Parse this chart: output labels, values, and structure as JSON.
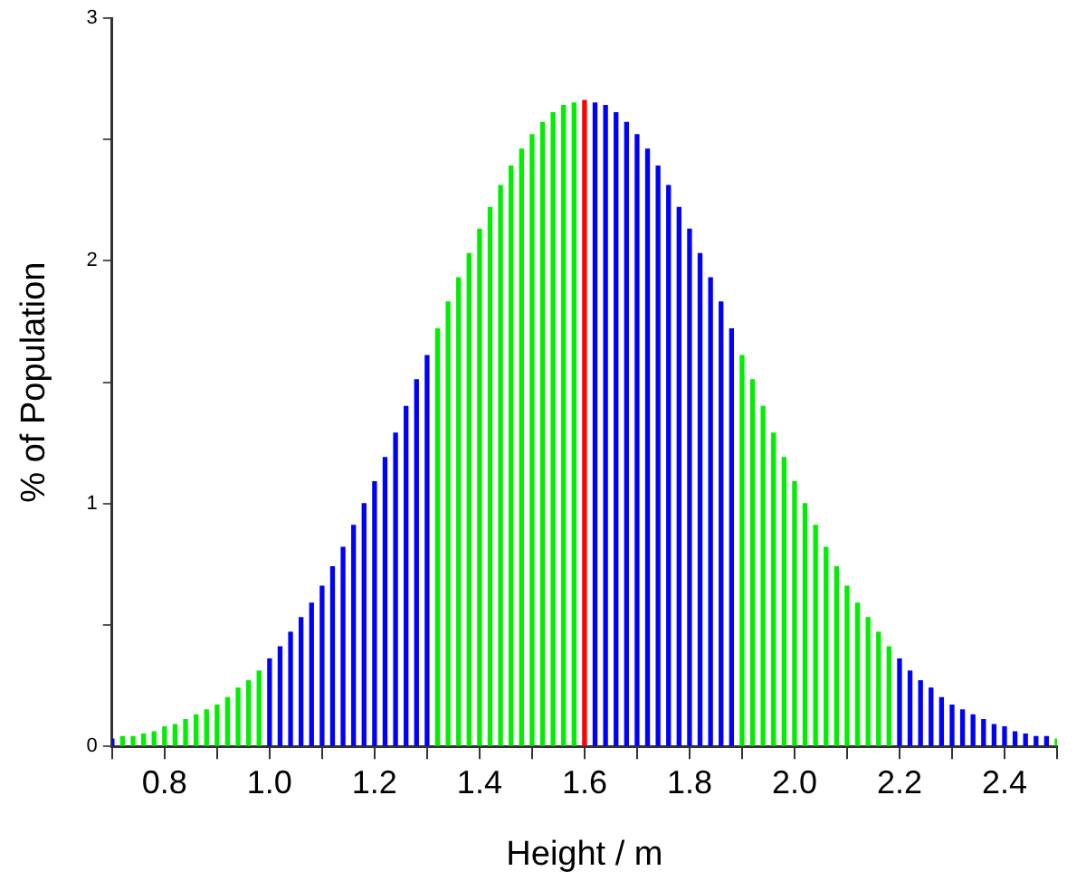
{
  "chart_data": {
    "type": "bar",
    "xlabel": "Height / m",
    "ylabel": "% of Population",
    "x": [
      0.7,
      0.72,
      0.74,
      0.76,
      0.78,
      0.8,
      0.82,
      0.84,
      0.86,
      0.88,
      0.9,
      0.92,
      0.94,
      0.96,
      0.98,
      1.0,
      1.02,
      1.04,
      1.06,
      1.08,
      1.1,
      1.12,
      1.14,
      1.16,
      1.18,
      1.2,
      1.22,
      1.24,
      1.26,
      1.28,
      1.3,
      1.32,
      1.34,
      1.36,
      1.38,
      1.4,
      1.42,
      1.44,
      1.46,
      1.48,
      1.5,
      1.52,
      1.54,
      1.56,
      1.58,
      1.6,
      1.62,
      1.64,
      1.66,
      1.68,
      1.7,
      1.72,
      1.74,
      1.76,
      1.78,
      1.8,
      1.82,
      1.84,
      1.86,
      1.88,
      1.9,
      1.92,
      1.94,
      1.96,
      1.98,
      2.0,
      2.02,
      2.04,
      2.06,
      2.08,
      2.1,
      2.12,
      2.14,
      2.16,
      2.18,
      2.2,
      2.22,
      2.24,
      2.26,
      2.28,
      2.3,
      2.32,
      2.34,
      2.36,
      2.38,
      2.4,
      2.42,
      2.44,
      2.46,
      2.48,
      2.5
    ],
    "values": [
      0.03,
      0.04,
      0.04,
      0.05,
      0.06,
      0.08,
      0.09,
      0.11,
      0.13,
      0.15,
      0.17,
      0.2,
      0.24,
      0.27,
      0.31,
      0.36,
      0.41,
      0.47,
      0.53,
      0.59,
      0.66,
      0.74,
      0.82,
      0.91,
      1.0,
      1.09,
      1.19,
      1.29,
      1.4,
      1.51,
      1.61,
      1.72,
      1.83,
      1.93,
      2.03,
      2.13,
      2.22,
      2.31,
      2.39,
      2.46,
      2.52,
      2.57,
      2.61,
      2.64,
      2.65,
      2.66,
      2.65,
      2.64,
      2.61,
      2.57,
      2.52,
      2.46,
      2.39,
      2.31,
      2.22,
      2.13,
      2.03,
      1.93,
      1.83,
      1.72,
      1.61,
      1.51,
      1.4,
      1.29,
      1.19,
      1.09,
      1.0,
      0.91,
      0.82,
      0.74,
      0.66,
      0.59,
      0.53,
      0.47,
      0.41,
      0.36,
      0.31,
      0.27,
      0.24,
      0.2,
      0.17,
      0.15,
      0.13,
      0.11,
      0.09,
      0.08,
      0.06,
      0.05,
      0.04,
      0.04,
      0.03
    ],
    "colors": [
      "#0000ff",
      "#00ee00",
      "#00ee00",
      "#00ee00",
      "#00ee00",
      "#00ee00",
      "#00ee00",
      "#00ee00",
      "#00ee00",
      "#00ee00",
      "#00ee00",
      "#00ee00",
      "#00ee00",
      "#00ee00",
      "#00ee00",
      "#0000ff",
      "#0000ff",
      "#0000ff",
      "#0000ff",
      "#0000ff",
      "#0000ff",
      "#0000ff",
      "#0000ff",
      "#0000ff",
      "#0000ff",
      "#0000ff",
      "#0000ff",
      "#0000ff",
      "#0000ff",
      "#0000ff",
      "#0000ff",
      "#00ee00",
      "#00ee00",
      "#00ee00",
      "#00ee00",
      "#00ee00",
      "#00ee00",
      "#00ee00",
      "#00ee00",
      "#00ee00",
      "#00ee00",
      "#00ee00",
      "#00ee00",
      "#00ee00",
      "#00ee00",
      "#ff0000",
      "#0000ff",
      "#0000ff",
      "#0000ff",
      "#0000ff",
      "#0000ff",
      "#0000ff",
      "#0000ff",
      "#0000ff",
      "#0000ff",
      "#0000ff",
      "#0000ff",
      "#0000ff",
      "#0000ff",
      "#0000ff",
      "#00ee00",
      "#00ee00",
      "#00ee00",
      "#00ee00",
      "#00ee00",
      "#00ee00",
      "#00ee00",
      "#00ee00",
      "#00ee00",
      "#00ee00",
      "#00ee00",
      "#00ee00",
      "#00ee00",
      "#00ee00",
      "#00ee00",
      "#0000ff",
      "#0000ff",
      "#0000ff",
      "#0000ff",
      "#0000ff",
      "#0000ff",
      "#0000ff",
      "#0000ff",
      "#0000ff",
      "#0000ff",
      "#0000ff",
      "#0000ff",
      "#0000ff",
      "#0000ff",
      "#0000ff",
      "#00ee00"
    ],
    "xlim": [
      0.7,
      2.5
    ],
    "xticks": [
      {
        "value": 0.7,
        "label": null
      },
      0.8,
      {
        "value": 0.9,
        "label": null
      },
      {
        "value": 1,
        "label": "1.0"
      },
      {
        "value": 1.1,
        "label": null
      },
      1.2,
      {
        "value": 1.3,
        "label": null
      },
      1.4,
      {
        "value": 1.5,
        "label": null
      },
      1.6,
      {
        "value": 1.7,
        "label": null
      },
      1.8,
      {
        "value": 1.9,
        "label": null
      },
      {
        "value": 2,
        "label": "2.0"
      },
      {
        "value": 2.1,
        "label": null
      },
      2.2,
      {
        "value": 2.3,
        "label": null
      },
      2.4,
      {
        "value": 2.5,
        "label": null
      }
    ],
    "ylim": [
      0,
      3
    ],
    "yticks": [
      0,
      {
        "value": 0.5,
        "label": null
      },
      1,
      {
        "value": 1.5,
        "label": null
      },
      2,
      {
        "value": 2.5,
        "label": null
      },
      3
    ],
    "grid": false,
    "legend": false
  }
}
